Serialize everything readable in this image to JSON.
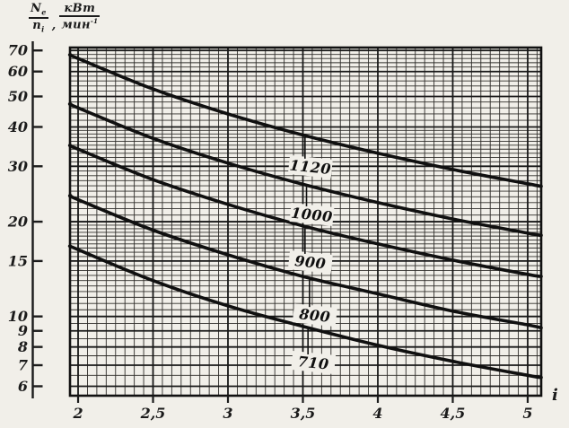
{
  "y_axis_title": {
    "num1": "N",
    "num1_sub": "e",
    "den1": "n",
    "den1_sub": "i",
    "separator": ",",
    "num2": "кВт",
    "den2": "мин",
    "den2_sup": "-1"
  },
  "chart_data": {
    "type": "line",
    "title": "",
    "xlabel": "i",
    "ylabel": "Ne/ni, кВт/мин",
    "x_scale": "linear",
    "y_scale": "log",
    "xlim": [
      1.946,
      5.09
    ],
    "ylim": [
      5.6,
      71.5
    ],
    "grid": {
      "on": true,
      "x_minor_step": 0.0625,
      "x_major_step": 0.5,
      "y_minor_ranges": [
        [
          6,
          10,
          0.5
        ],
        [
          10,
          20,
          0.5
        ],
        [
          20,
          40,
          1
        ],
        [
          40,
          70,
          2
        ]
      ]
    },
    "x_ticks": [
      {
        "value": 2,
        "label": "2"
      },
      {
        "value": 2.5,
        "label": "2,5"
      },
      {
        "value": 3,
        "label": "3"
      },
      {
        "value": 3.5,
        "label": "3,5"
      },
      {
        "value": 4,
        "label": "4"
      },
      {
        "value": 4.5,
        "label": "4,5"
      },
      {
        "value": 5,
        "label": "5"
      }
    ],
    "y_ticks": [
      {
        "value": 70,
        "label": "70"
      },
      {
        "value": 60,
        "label": "60"
      },
      {
        "value": 50,
        "label": "50"
      },
      {
        "value": 40,
        "label": "40"
      },
      {
        "value": 30,
        "label": "30"
      },
      {
        "value": 20,
        "label": "20"
      },
      {
        "value": 15,
        "label": "15"
      },
      {
        "value": 10,
        "label": "10"
      },
      {
        "value": 9,
        "label": "9"
      },
      {
        "value": 8,
        "label": "8"
      },
      {
        "value": 7,
        "label": "7"
      },
      {
        "value": 6,
        "label": "6"
      }
    ],
    "x": [
      1.95,
      2,
      2.5,
      3,
      3.5,
      4,
      4.5,
      5,
      5.09
    ],
    "series": [
      {
        "name": "1120",
        "values": [
          67.8,
          66,
          52.8,
          44,
          37.7,
          33,
          29.3,
          26.4,
          25.9
        ],
        "label": {
          "x": 3.55,
          "v": 29.9
        }
      },
      {
        "name": "1000",
        "values": [
          47.3,
          46,
          36.8,
          30.7,
          26.3,
          23,
          20.4,
          18.4,
          18.1
        ],
        "label": {
          "x": 3.56,
          "v": 21.1
        }
      },
      {
        "name": "900",
        "values": [
          34.9,
          34,
          27.2,
          22.7,
          19.4,
          17,
          15.1,
          13.6,
          13.4
        ],
        "label": {
          "x": 3.55,
          "v": 14.9
        }
      },
      {
        "name": "800",
        "values": [
          24.2,
          23.5,
          18.8,
          15.7,
          13.4,
          11.8,
          10.4,
          9.4,
          9.2
        ],
        "label": {
          "x": 3.58,
          "v": 10.1
        }
      },
      {
        "name": "710",
        "values": [
          16.7,
          16.3,
          13.0,
          10.8,
          9.3,
          8.1,
          7.2,
          6.5,
          6.4
        ],
        "label": {
          "x": 3.57,
          "v": 7.14
        }
      }
    ],
    "ink_color": "#1b1b1b",
    "paper_color": "#f1efe9"
  }
}
